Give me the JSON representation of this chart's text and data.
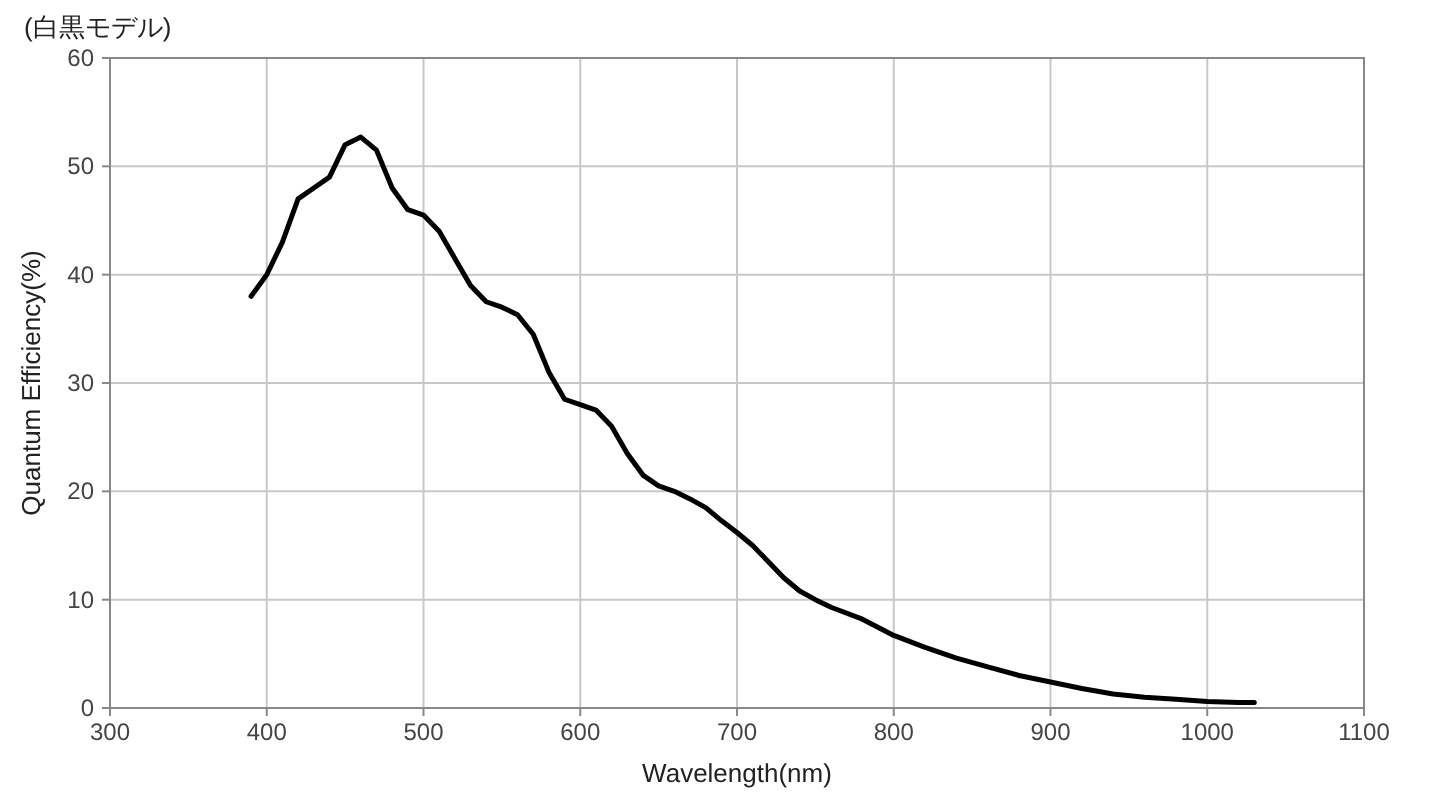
{
  "chart_data": {
    "type": "line",
    "title": "(白黒モデル)",
    "xlabel": "Wavelength(nm)",
    "ylabel": "Quantum  Efficiency(%)",
    "xlim": [
      300,
      1100
    ],
    "xticks": [
      300,
      400,
      500,
      600,
      700,
      800,
      900,
      1000,
      1100
    ],
    "ylim": [
      0,
      60
    ],
    "yticks": [
      0,
      10,
      20,
      30,
      40,
      50,
      60
    ],
    "grid": true,
    "marker": "none",
    "line_style": "solid",
    "series": [
      {
        "color": "#000000",
        "x": [
          390,
          400,
          410,
          420,
          430,
          440,
          450,
          460,
          470,
          480,
          490,
          500,
          510,
          520,
          530,
          540,
          550,
          560,
          570,
          580,
          590,
          600,
          610,
          620,
          630,
          640,
          650,
          660,
          670,
          680,
          690,
          700,
          710,
          720,
          730,
          740,
          750,
          760,
          780,
          800,
          820,
          840,
          860,
          880,
          900,
          920,
          940,
          960,
          980,
          1000,
          1020,
          1030
        ],
        "values": [
          38,
          40,
          43,
          47,
          48,
          49,
          52,
          52.7,
          51.5,
          48,
          46,
          45.5,
          44,
          41.5,
          39,
          37.5,
          37,
          36.3,
          34.5,
          31,
          28.5,
          28,
          27.5,
          26,
          23.5,
          21.5,
          20.5,
          20,
          19.3,
          18.5,
          17.3,
          16.2,
          15,
          13.5,
          12,
          10.8,
          10,
          9.3,
          8.2,
          6.7,
          5.6,
          4.6,
          3.8,
          3,
          2.4,
          1.8,
          1.3,
          1.0,
          0.8,
          0.6,
          0.5,
          0.5
        ]
      }
    ]
  }
}
